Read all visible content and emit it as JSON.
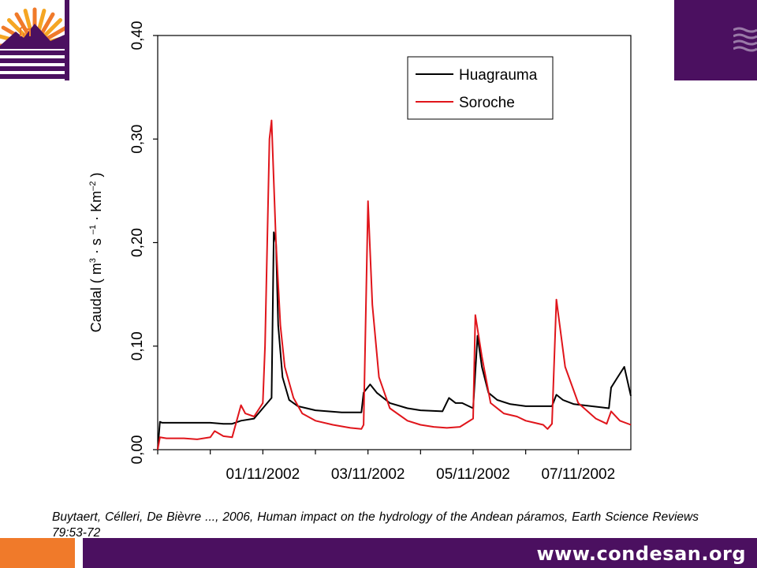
{
  "branding": {
    "url": "www.condesan.org",
    "purple": "#4b1060",
    "orange": "#f07a2a",
    "logo_icon": "sun-mountains-llama-logo-icon",
    "wave_icon": "wave-lines-icon"
  },
  "citation": "Buytaert, Célleri, De Bièvre ..., 2006, Human impact on the hydrology of the Andean páramos, Earth Science Reviews 79:53-72",
  "chart_data": {
    "type": "line",
    "ylabel_parts": {
      "main": "Caudal ( m",
      "sup1": "3",
      "dot1": " · s ",
      "sup2": "–1",
      "dot2": " · Km",
      "sup3": "–2",
      "close": " )"
    },
    "xlabel": "",
    "ylim": [
      0,
      0.4
    ],
    "y_ticks": [
      "0,00",
      "0,10",
      "0,20",
      "0,30",
      "0,40"
    ],
    "y_tick_values": [
      0,
      0.1,
      0.2,
      0.3,
      0.4
    ],
    "x_tick_labels": [
      "01/11/2002",
      "03/11/2002",
      "05/11/2002",
      "07/11/2002"
    ],
    "x_axis_days": "30/10/2002 to 08/11/2002",
    "x_minor_ticks": [
      "30/10/2002",
      "31/10/2002",
      "01/11/2002",
      "02/11/2002",
      "03/11/2002",
      "04/11/2002",
      "05/11/2002",
      "06/11/2002",
      "07/11/2002"
    ],
    "grid": false,
    "legend": {
      "placement": "top-right",
      "entries": [
        {
          "label": "Huagrauma",
          "color": "#000000"
        },
        {
          "label": "Soroche",
          "color": "#e0151b"
        }
      ]
    },
    "series": [
      {
        "name": "Huagrauma",
        "color": "#000000",
        "x": [
          "30/10/2002 00:00",
          "30/10/2002 01:00",
          "30/10/2002 02:00",
          "30/10/2002 12:00",
          "31/10/2002 00:00",
          "31/10/2002 06:00",
          "31/10/2002 10:00",
          "31/10/2002 14:00",
          "31/10/2002 20:00",
          "01/11/2002 00:00",
          "01/11/2002 02:00",
          "01/11/2002 04:00",
          "01/11/2002 05:00",
          "01/11/2002 06:00",
          "01/11/2002 07:00",
          "01/11/2002 09:00",
          "01/11/2002 12:00",
          "01/11/2002 16:00",
          "01/11/2002 20:00",
          "02/11/2002 00:00",
          "02/11/2002 12:00",
          "02/11/2002 21:00",
          "02/11/2002 22:00",
          "03/11/2002 01:00",
          "03/11/2002 04:00",
          "03/11/2002 10:00",
          "03/11/2002 18:00",
          "04/11/2002 00:00",
          "04/11/2002 10:00",
          "04/11/2002 13:00",
          "04/11/2002 16:00",
          "04/11/2002 19:00",
          "05/11/2002 00:00",
          "05/11/2002 02:00",
          "05/11/2002 04:00",
          "05/11/2002 07:00",
          "05/11/2002 11:00",
          "05/11/2002 17:00",
          "06/11/2002 00:00",
          "06/11/2002 12:00",
          "06/11/2002 14:00",
          "06/11/2002 17:00",
          "06/11/2002 22:00",
          "07/11/2002 06:00",
          "07/11/2002 14:00",
          "07/11/2002 15:00",
          "07/11/2002 18:00",
          "07/11/2002 21:00",
          "08/11/2002 00:00"
        ],
        "values": [
          0.0,
          0.027,
          0.026,
          0.026,
          0.026,
          0.025,
          0.025,
          0.028,
          0.03,
          0.04,
          0.045,
          0.05,
          0.21,
          0.2,
          0.12,
          0.07,
          0.048,
          0.042,
          0.04,
          0.038,
          0.036,
          0.036,
          0.055,
          0.063,
          0.055,
          0.045,
          0.04,
          0.038,
          0.037,
          0.05,
          0.045,
          0.045,
          0.04,
          0.11,
          0.08,
          0.055,
          0.048,
          0.044,
          0.042,
          0.042,
          0.053,
          0.048,
          0.044,
          0.042,
          0.04,
          0.06,
          0.07,
          0.08,
          0.052
        ]
      },
      {
        "name": "Soroche",
        "color": "#e0151b",
        "x": [
          "30/10/2002 00:00",
          "30/10/2002 01:00",
          "30/10/2002 04:00",
          "30/10/2002 12:00",
          "30/10/2002 18:00",
          "31/10/2002 00:00",
          "31/10/2002 02:00",
          "31/10/2002 06:00",
          "31/10/2002 10:00",
          "31/10/2002 14:00",
          "31/10/2002 16:00",
          "31/10/2002 20:00",
          "01/11/2002 00:00",
          "01/11/2002 01:00",
          "01/11/2002 03:00",
          "01/11/2002 04:00",
          "01/11/2002 06:00",
          "01/11/2002 08:00",
          "01/11/2002 10:00",
          "01/11/2002 14:00",
          "01/11/2002 18:00",
          "02/11/2002 00:00",
          "02/11/2002 08:00",
          "02/11/2002 16:00",
          "02/11/2002 21:00",
          "02/11/2002 22:00",
          "03/11/2002 00:00",
          "03/11/2002 02:00",
          "03/11/2002 05:00",
          "03/11/2002 10:00",
          "03/11/2002 18:00",
          "04/11/2002 00:00",
          "04/11/2002 06:00",
          "04/11/2002 12:00",
          "04/11/2002 18:00",
          "05/11/2002 00:00",
          "05/11/2002 01:00",
          "05/11/2002 04:00",
          "05/11/2002 08:00",
          "05/11/2002 14:00",
          "05/11/2002 20:00",
          "06/11/2002 00:00",
          "06/11/2002 04:00",
          "06/11/2002 08:00",
          "06/11/2002 10:00",
          "06/11/2002 12:00",
          "06/11/2002 14:00",
          "06/11/2002 18:00",
          "07/11/2002 00:00",
          "07/11/2002 08:00",
          "07/11/2002 13:00",
          "07/11/2002 15:00",
          "07/11/2002 19:00",
          "08/11/2002 00:00"
        ],
        "values": [
          0.0,
          0.012,
          0.011,
          0.011,
          0.01,
          0.012,
          0.018,
          0.013,
          0.012,
          0.043,
          0.035,
          0.032,
          0.045,
          0.1,
          0.3,
          0.318,
          0.2,
          0.12,
          0.08,
          0.05,
          0.035,
          0.028,
          0.024,
          0.021,
          0.02,
          0.024,
          0.24,
          0.14,
          0.07,
          0.04,
          0.028,
          0.024,
          0.022,
          0.021,
          0.022,
          0.03,
          0.13,
          0.09,
          0.045,
          0.035,
          0.032,
          0.028,
          0.026,
          0.024,
          0.02,
          0.025,
          0.145,
          0.08,
          0.045,
          0.03,
          0.025,
          0.037,
          0.028,
          0.024
        ]
      }
    ]
  }
}
